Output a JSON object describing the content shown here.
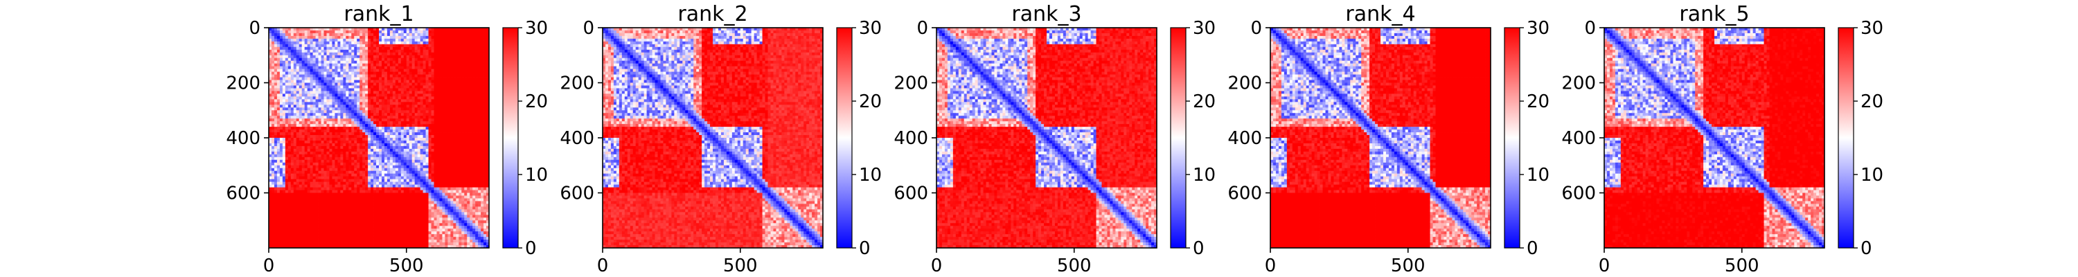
{
  "chart_data": [
    {
      "type": "heatmap",
      "title": "rank_1",
      "xlabel": "",
      "ylabel": "",
      "xlim": [
        0,
        800
      ],
      "ylim": [
        800,
        0
      ],
      "x_ticks": [
        "0",
        "500"
      ],
      "y_ticks": [
        "0",
        "200",
        "400",
        "600"
      ],
      "colorbar": {
        "range": [
          0,
          30
        ],
        "ticks": [
          "0",
          "10",
          "20",
          "30"
        ],
        "colormap": "bwr"
      },
      "domains": [
        [
          0,
          360
        ],
        [
          360,
          580
        ],
        [
          580,
          800
        ]
      ],
      "contact_blocks": [
        [
          40,
          330,
          40,
          330
        ],
        [
          0,
          60,
          400,
          580
        ],
        [
          360,
          580,
          400,
          580
        ]
      ],
      "bottom_band_value": 30
    },
    {
      "type": "heatmap",
      "title": "rank_2",
      "xlabel": "",
      "ylabel": "",
      "xlim": [
        0,
        800
      ],
      "ylim": [
        800,
        0
      ],
      "x_ticks": [
        "0",
        "500"
      ],
      "y_ticks": [
        "0",
        "200",
        "400",
        "600"
      ],
      "colorbar": {
        "range": [
          0,
          30
        ],
        "ticks": [
          "0",
          "10",
          "20",
          "30"
        ],
        "colormap": "bwr"
      },
      "domains": [
        [
          0,
          360
        ],
        [
          360,
          580
        ],
        [
          580,
          800
        ]
      ],
      "contact_blocks": [
        [
          40,
          330,
          40,
          330
        ],
        [
          0,
          60,
          400,
          580
        ],
        [
          360,
          580,
          400,
          580
        ]
      ],
      "bottom_band_value": 26
    },
    {
      "type": "heatmap",
      "title": "rank_3",
      "xlabel": "",
      "ylabel": "",
      "xlim": [
        0,
        800
      ],
      "ylim": [
        800,
        0
      ],
      "x_ticks": [
        "0",
        "500"
      ],
      "y_ticks": [
        "0",
        "200",
        "400",
        "600"
      ],
      "colorbar": {
        "range": [
          0,
          30
        ],
        "ticks": [
          "0",
          "10",
          "20",
          "30"
        ],
        "colormap": "bwr"
      },
      "domains": [
        [
          0,
          360
        ],
        [
          360,
          580
        ],
        [
          580,
          800
        ]
      ],
      "contact_blocks": [
        [
          40,
          330,
          40,
          330
        ],
        [
          0,
          60,
          400,
          580
        ],
        [
          360,
          580,
          400,
          580
        ]
      ],
      "bottom_band_value": 27
    },
    {
      "type": "heatmap",
      "title": "rank_4",
      "xlabel": "",
      "ylabel": "",
      "xlim": [
        0,
        800
      ],
      "ylim": [
        800,
        0
      ],
      "x_ticks": [
        "0",
        "500"
      ],
      "y_ticks": [
        "0",
        "200",
        "400",
        "600"
      ],
      "colorbar": {
        "range": [
          0,
          30
        ],
        "ticks": [
          "0",
          "10",
          "20",
          "30"
        ],
        "colormap": "bwr"
      },
      "domains": [
        [
          0,
          360
        ],
        [
          360,
          580
        ],
        [
          580,
          800
        ]
      ],
      "contact_blocks": [
        [
          40,
          330,
          40,
          330
        ],
        [
          0,
          60,
          400,
          580
        ],
        [
          360,
          580,
          400,
          580
        ]
      ],
      "bottom_band_value": 30
    },
    {
      "type": "heatmap",
      "title": "rank_5",
      "xlabel": "",
      "ylabel": "",
      "xlim": [
        0,
        800
      ],
      "ylim": [
        800,
        0
      ],
      "x_ticks": [
        "0",
        "500"
      ],
      "y_ticks": [
        "0",
        "200",
        "400",
        "600"
      ],
      "colorbar": {
        "range": [
          0,
          30
        ],
        "ticks": [
          "0",
          "10",
          "20",
          "30"
        ],
        "colormap": "bwr"
      },
      "domains": [
        [
          0,
          360
        ],
        [
          360,
          580
        ],
        [
          580,
          800
        ]
      ],
      "contact_blocks": [
        [
          40,
          330,
          40,
          330
        ],
        [
          0,
          60,
          400,
          580
        ],
        [
          360,
          580,
          400,
          580
        ]
      ],
      "bottom_band_value": 29
    }
  ]
}
